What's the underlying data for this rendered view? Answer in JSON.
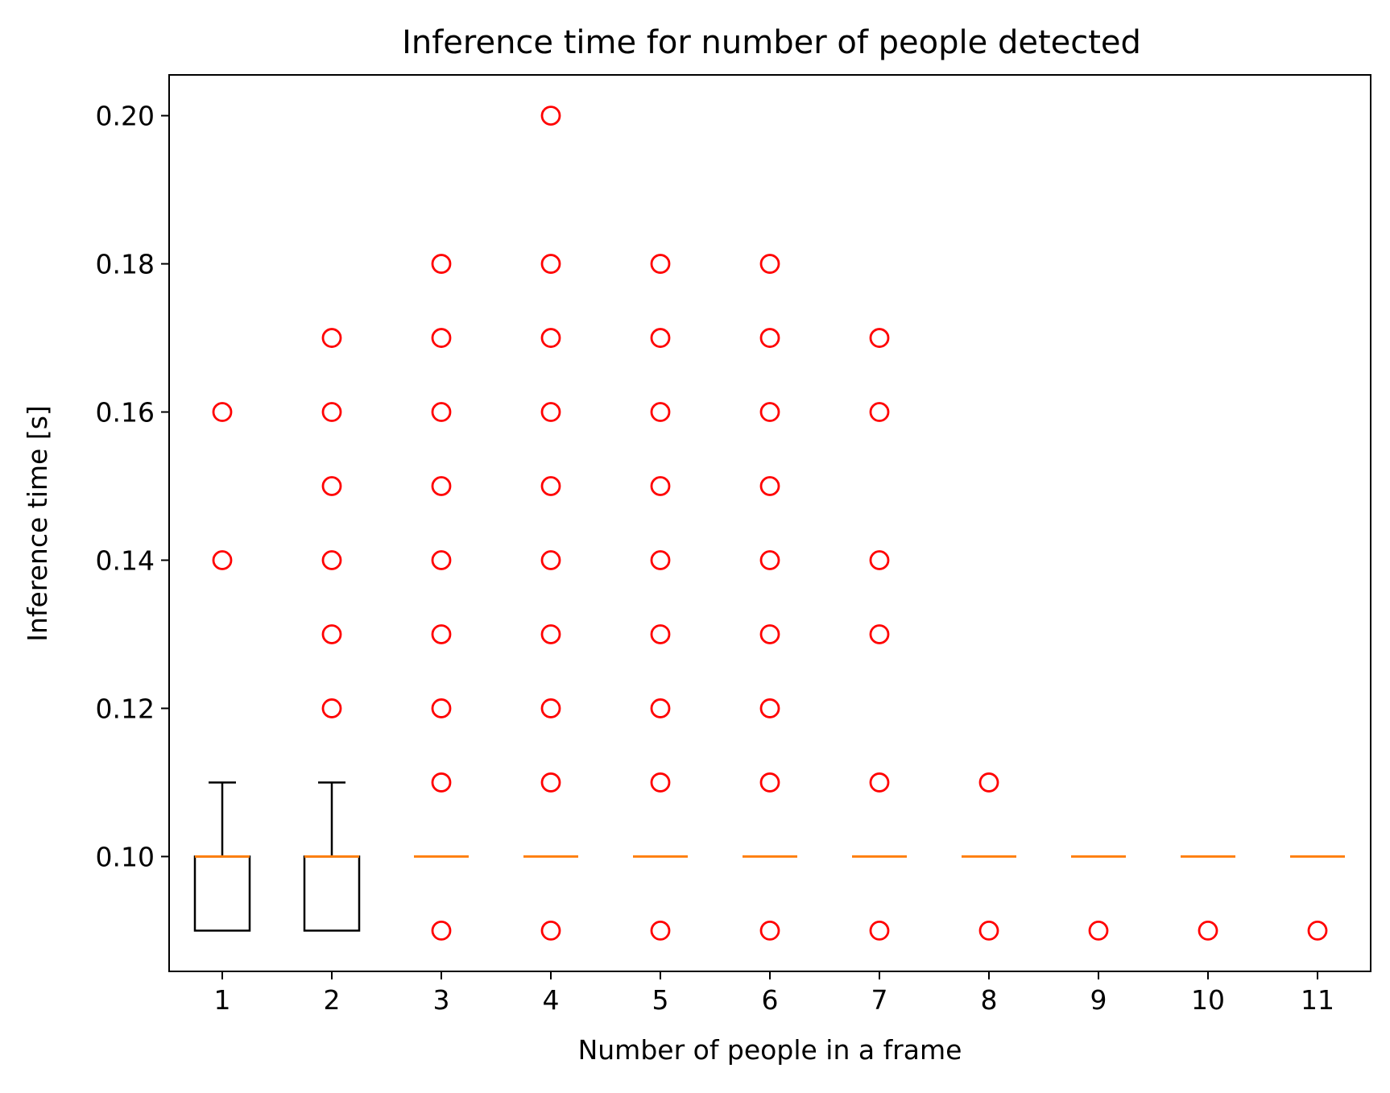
{
  "chart_data": {
    "type": "box",
    "title": "Inference time for number of people detected",
    "xlabel": "Number of people in a frame",
    "ylabel": "Inference time [s]",
    "categories": [
      "1",
      "2",
      "3",
      "4",
      "5",
      "6",
      "7",
      "8",
      "9",
      "10",
      "11"
    ],
    "y_ticks": [
      "0.10",
      "0.12",
      "0.14",
      "0.16",
      "0.18",
      "0.20"
    ],
    "y_tick_values": [
      0.1,
      0.12,
      0.14,
      0.16,
      0.18,
      0.2
    ],
    "ylim": [
      0.0845,
      0.2055
    ],
    "grid": false,
    "colors": {
      "box": "#000000",
      "median": "#ff7f0e",
      "outlier": "#ff0000"
    },
    "boxes": [
      {
        "category": "1",
        "q1": 0.09,
        "median": 0.1,
        "q3": 0.1,
        "whisker_low": 0.09,
        "whisker_high": 0.11,
        "outliers": [
          0.14,
          0.16
        ]
      },
      {
        "category": "2",
        "q1": 0.09,
        "median": 0.1,
        "q3": 0.1,
        "whisker_low": 0.09,
        "whisker_high": 0.11,
        "outliers": [
          0.12,
          0.13,
          0.14,
          0.15,
          0.16,
          0.17
        ]
      },
      {
        "category": "3",
        "q1": 0.1,
        "median": 0.1,
        "q3": 0.1,
        "whisker_low": 0.1,
        "whisker_high": 0.1,
        "outliers": [
          0.09,
          0.11,
          0.12,
          0.13,
          0.14,
          0.15,
          0.16,
          0.17,
          0.18
        ]
      },
      {
        "category": "4",
        "q1": 0.1,
        "median": 0.1,
        "q3": 0.1,
        "whisker_low": 0.1,
        "whisker_high": 0.1,
        "outliers": [
          0.09,
          0.11,
          0.12,
          0.13,
          0.14,
          0.15,
          0.16,
          0.17,
          0.18,
          0.2
        ]
      },
      {
        "category": "5",
        "q1": 0.1,
        "median": 0.1,
        "q3": 0.1,
        "whisker_low": 0.1,
        "whisker_high": 0.1,
        "outliers": [
          0.09,
          0.11,
          0.12,
          0.13,
          0.14,
          0.15,
          0.16,
          0.17,
          0.18
        ]
      },
      {
        "category": "6",
        "q1": 0.1,
        "median": 0.1,
        "q3": 0.1,
        "whisker_low": 0.1,
        "whisker_high": 0.1,
        "outliers": [
          0.09,
          0.11,
          0.12,
          0.13,
          0.14,
          0.15,
          0.16,
          0.17,
          0.18
        ]
      },
      {
        "category": "7",
        "q1": 0.1,
        "median": 0.1,
        "q3": 0.1,
        "whisker_low": 0.1,
        "whisker_high": 0.1,
        "outliers": [
          0.09,
          0.11,
          0.13,
          0.14,
          0.16,
          0.17
        ]
      },
      {
        "category": "8",
        "q1": 0.1,
        "median": 0.1,
        "q3": 0.1,
        "whisker_low": 0.1,
        "whisker_high": 0.1,
        "outliers": [
          0.09,
          0.11
        ]
      },
      {
        "category": "9",
        "q1": 0.1,
        "median": 0.1,
        "q3": 0.1,
        "whisker_low": 0.1,
        "whisker_high": 0.1,
        "outliers": [
          0.09
        ]
      },
      {
        "category": "10",
        "q1": 0.1,
        "median": 0.1,
        "q3": 0.1,
        "whisker_low": 0.1,
        "whisker_high": 0.1,
        "outliers": [
          0.09
        ]
      },
      {
        "category": "11",
        "q1": 0.1,
        "median": 0.1,
        "q3": 0.1,
        "whisker_low": 0.1,
        "whisker_high": 0.1,
        "outliers": [
          0.09
        ]
      }
    ]
  }
}
